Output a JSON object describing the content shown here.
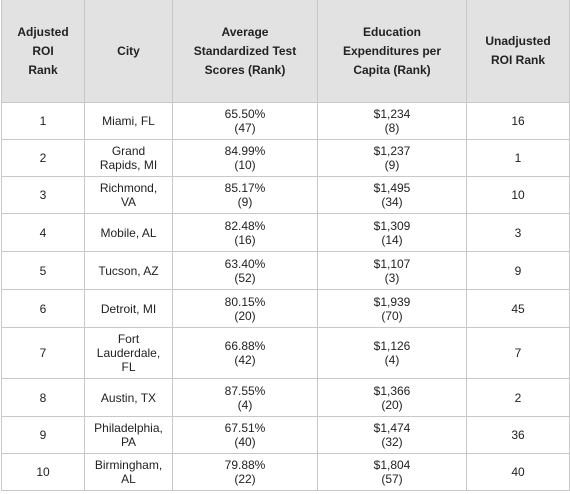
{
  "headers": {
    "rank": [
      "Adjusted",
      "ROI",
      "Rank"
    ],
    "city": [
      "City"
    ],
    "scores": [
      "Average",
      "Standardized Test",
      "Scores (Rank)"
    ],
    "expenditures": [
      "Education",
      "Expenditures per",
      "Capita (Rank)"
    ],
    "unadjusted": [
      "Unadjusted",
      "ROI Rank"
    ]
  },
  "rows": [
    {
      "rank": "1",
      "city": [
        "Miami, FL"
      ],
      "score": "65.50%",
      "score_rank": "(47)",
      "exp": "$1,234",
      "exp_rank": "(8)",
      "unadj": "16"
    },
    {
      "rank": "2",
      "city": [
        "Grand",
        "Rapids, MI"
      ],
      "score": "84.99%",
      "score_rank": "(10)",
      "exp": "$1,237",
      "exp_rank": "(9)",
      "unadj": "1"
    },
    {
      "rank": "3",
      "city": [
        "Richmond,",
        "VA"
      ],
      "score": "85.17%",
      "score_rank": "(9)",
      "exp": "$1,495",
      "exp_rank": "(34)",
      "unadj": "10"
    },
    {
      "rank": "4",
      "city": [
        "Mobile, AL"
      ],
      "score": "82.48%",
      "score_rank": "(16)",
      "exp": "$1,309",
      "exp_rank": "(14)",
      "unadj": "3"
    },
    {
      "rank": "5",
      "city": [
        "Tucson, AZ"
      ],
      "score": "63.40%",
      "score_rank": "(52)",
      "exp": "$1,107",
      "exp_rank": "(3)",
      "unadj": "9"
    },
    {
      "rank": "6",
      "city": [
        "Detroit, MI"
      ],
      "score": "80.15%",
      "score_rank": "(20)",
      "exp": "$1,939",
      "exp_rank": "(70)",
      "unadj": "45"
    },
    {
      "rank": "7",
      "city": [
        "Fort",
        "Lauderdale,",
        "FL"
      ],
      "score": "66.88%",
      "score_rank": "(42)",
      "exp": "$1,126",
      "exp_rank": "(4)",
      "unadj": "7"
    },
    {
      "rank": "8",
      "city": [
        "Austin, TX"
      ],
      "score": "87.55%",
      "score_rank": "(4)",
      "exp": "$1,366",
      "exp_rank": "(20)",
      "unadj": "2"
    },
    {
      "rank": "9",
      "city": [
        "Philadelphia,",
        "PA"
      ],
      "score": "67.51%",
      "score_rank": "(40)",
      "exp": "$1,474",
      "exp_rank": "(32)",
      "unadj": "36"
    },
    {
      "rank": "10",
      "city": [
        "Birmingham,",
        "AL"
      ],
      "score": "79.88%",
      "score_rank": "(22)",
      "exp": "$1,804",
      "exp_rank": "(57)",
      "unadj": "40"
    }
  ]
}
